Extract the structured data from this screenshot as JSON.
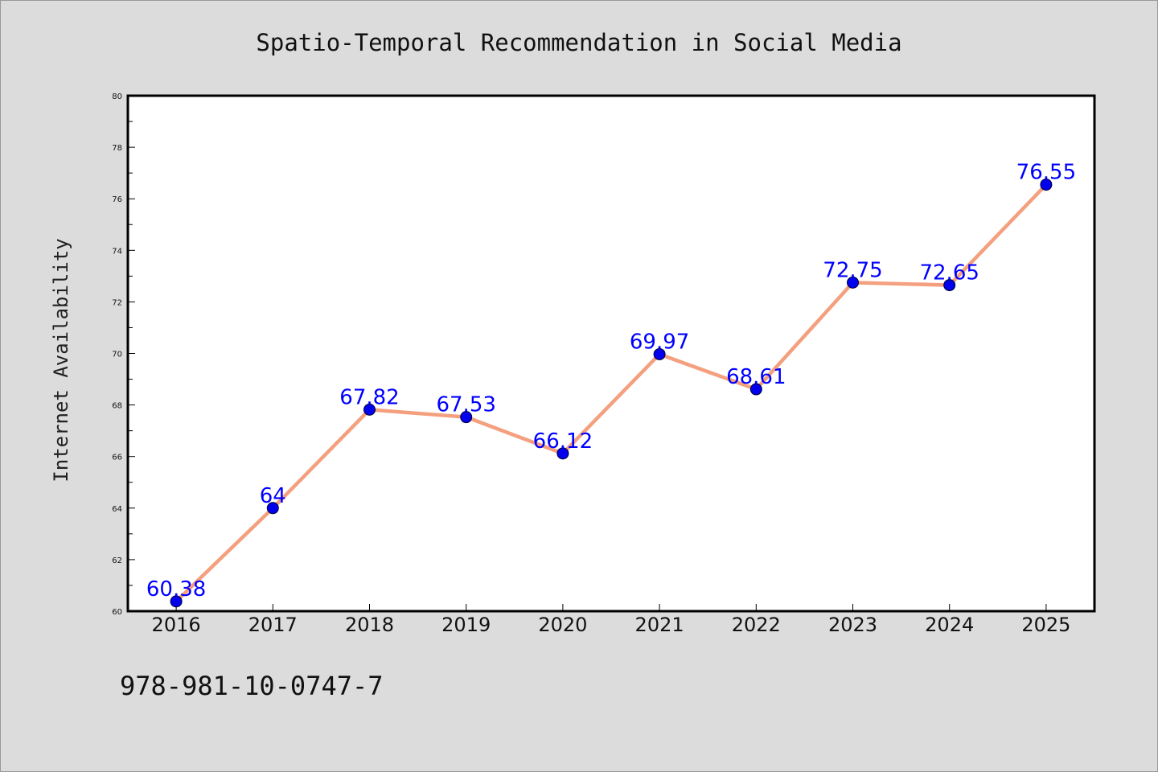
{
  "chart_data": {
    "type": "line",
    "title": "Spatio-Temporal Recommendation in Social Media",
    "ylabel": "Internet Availability",
    "xlabel": "",
    "categories": [
      "2016",
      "2017",
      "2018",
      "2019",
      "2020",
      "2021",
      "2022",
      "2023",
      "2024",
      "2025"
    ],
    "series": [
      {
        "values": [
          60.38,
          64,
          67.82,
          67.53,
          66.12,
          69.97,
          68.61,
          72.75,
          72.65,
          76.55
        ],
        "labels": [
          "60.38",
          "64",
          "67.82",
          "67.53",
          "66.12",
          "69.97",
          "68.61",
          "72.75",
          "72.65",
          "76.55"
        ]
      }
    ],
    "ylim": [
      60,
      80
    ],
    "yticks": [
      "60",
      "62",
      "64",
      "66",
      "68",
      "70",
      "72",
      "74",
      "76",
      "78",
      "80"
    ],
    "grid": false,
    "line_color": "#f4a07f",
    "marker_color": "#0000ee",
    "label_color": "#0000ff"
  },
  "footer": {
    "isbn": "978-981-10-0747-7"
  }
}
